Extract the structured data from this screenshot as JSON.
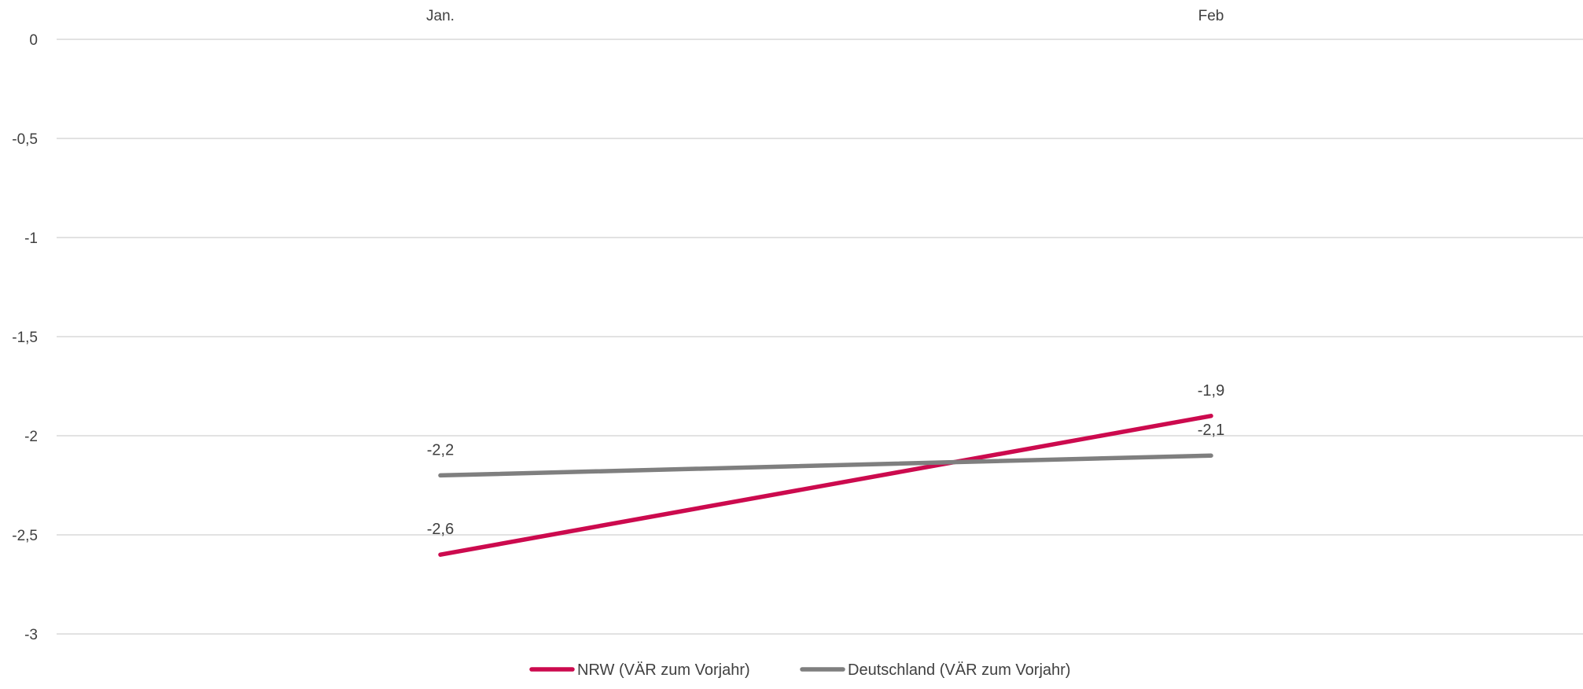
{
  "chart_data": {
    "type": "line",
    "categories": [
      "Jan.",
      "Feb"
    ],
    "series": [
      {
        "name": "NRW (VÄR zum Vorjahr)",
        "values": [
          -2.6,
          -1.9
        ],
        "labels": [
          "-2,6",
          "-1,9"
        ],
        "color": "#cc0a4e"
      },
      {
        "name": "Deutschland (VÄR zum Vorjahr)",
        "values": [
          -2.2,
          -2.1
        ],
        "labels": [
          "-2,2",
          "-2,1"
        ],
        "color": "#7f7f7f"
      }
    ],
    "yticks": [
      0,
      -0.5,
      -1,
      -1.5,
      -2,
      -2.5,
      -3
    ],
    "ytick_labels": [
      "0",
      "-0,5",
      "-1",
      "-1,5",
      "-2",
      "-2,5",
      "-3"
    ],
    "ylim": [
      -3,
      0
    ],
    "x_axis_position": "top",
    "grid": true,
    "legend": "bottom",
    "gridline_color": "#d9d9d9",
    "text_color": "#404040"
  }
}
